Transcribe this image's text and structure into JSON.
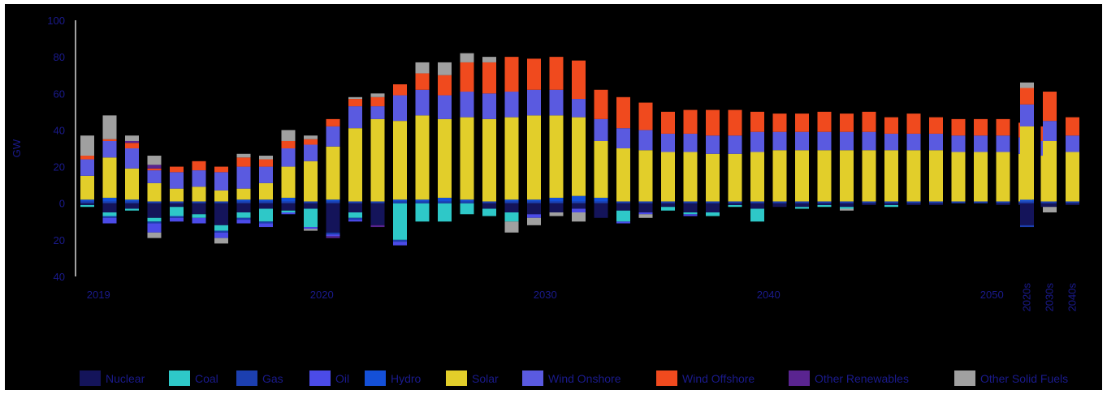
{
  "chart_data": {
    "type": "bar",
    "stacked": true,
    "ylabel": "GW",
    "ylim": [
      -40,
      100
    ],
    "yticks": [
      -40,
      -20,
      0,
      20,
      40,
      60,
      80,
      100
    ],
    "x_tick_labels": [
      {
        "after_index": 0,
        "label": "2019"
      },
      {
        "after_index": 10,
        "label": "2020"
      },
      {
        "after_index": 20,
        "label": "2030"
      },
      {
        "after_index": 30,
        "label": "2040"
      },
      {
        "after_index": 40,
        "label": "2050"
      }
    ],
    "summary_labels": [
      "2020s",
      "2030s",
      "2040s"
    ],
    "categories": [
      "1",
      "2",
      "3",
      "4",
      "5",
      "6",
      "7",
      "8",
      "9",
      "10",
      "11",
      "12",
      "13",
      "14",
      "15",
      "16",
      "17",
      "18",
      "19",
      "20",
      "21",
      "22",
      "23",
      "24",
      "25",
      "26",
      "27",
      "28",
      "29",
      "30",
      "31",
      "32",
      "33",
      "34",
      "35",
      "36",
      "37",
      "38",
      "39",
      "40",
      "41",
      "42",
      "43",
      "44",
      "2020s",
      "2030s",
      "2040s"
    ],
    "colors": {
      "Nuclear": "#14145a",
      "Coal": "#2ec8c8",
      "Gas": "#1c3fb0",
      "Oil": "#4b4be8",
      "Hydro": "#1450d8",
      "Solar": "#e2ce2a",
      "Wind Onshore": "#5a5ae0",
      "Wind Offshore": "#f04a1e",
      "Other Renewables": "#5a2490",
      "Other Solid Fuels": "#a0a0a0"
    },
    "series": [
      {
        "name": "Nuclear",
        "pos": [
          0,
          0,
          0,
          0,
          0,
          0,
          0,
          0,
          0,
          0,
          0,
          0,
          0,
          0,
          0,
          0,
          0,
          0,
          0,
          0,
          0,
          0,
          0,
          0,
          0,
          0,
          0,
          0,
          0,
          0,
          0,
          0,
          0,
          0,
          0,
          0,
          0,
          0,
          0,
          0,
          0,
          0,
          0,
          0,
          0,
          0,
          0
        ],
        "neg": [
          -1,
          -5,
          -3,
          -8,
          -2,
          -6,
          -12,
          -5,
          -3,
          -4,
          -3,
          -16,
          -5,
          -12,
          0,
          0,
          0,
          0,
          -3,
          -5,
          -6,
          -5,
          -3,
          -8,
          -4,
          -5,
          -2,
          -5,
          -5,
          -1,
          -3,
          -2,
          -2,
          -1,
          -2,
          -1,
          -1,
          -1,
          -1,
          0,
          0,
          -1,
          -1,
          -2,
          -12,
          -2,
          -1
        ]
      },
      {
        "name": "Coal",
        "pos": [
          0,
          0,
          0,
          0,
          0,
          0,
          0,
          0,
          0,
          0,
          0,
          0,
          0,
          0,
          0,
          0,
          0,
          0,
          0,
          0,
          0,
          0,
          0,
          0,
          0,
          0,
          0,
          0,
          0,
          0,
          0,
          0,
          0,
          0,
          0,
          0,
          0,
          0,
          0,
          0,
          0,
          0,
          0,
          0,
          0,
          0,
          0
        ],
        "neg": [
          -1,
          -2,
          -1,
          -2,
          -5,
          -2,
          -3,
          -3,
          -7,
          -1,
          -10,
          0,
          -3,
          0,
          -20,
          -10,
          -10,
          -6,
          -4,
          -5,
          0,
          0,
          0,
          0,
          -6,
          0,
          -2,
          -1,
          -2,
          -1,
          -7,
          0,
          -1,
          -1,
          -1,
          0,
          -1,
          0,
          0,
          0,
          0,
          0,
          0,
          0,
          0,
          0,
          0
        ]
      },
      {
        "name": "Gas",
        "pos": [
          1,
          1,
          1,
          1,
          1,
          1,
          1,
          1,
          1,
          1,
          1,
          1,
          1,
          1,
          1,
          1,
          1,
          1,
          1,
          1,
          1,
          1,
          1,
          1,
          1,
          1,
          1,
          1,
          1,
          1,
          1,
          1,
          1,
          1,
          1,
          1,
          1,
          1,
          1,
          1,
          1,
          1,
          1,
          1,
          1,
          1,
          1
        ],
        "neg": [
          0,
          -1,
          0,
          -1,
          -1,
          0,
          -1,
          -1,
          -1,
          0,
          0,
          -1,
          -1,
          0,
          -1,
          0,
          0,
          0,
          0,
          0,
          0,
          0,
          0,
          0,
          0,
          0,
          0,
          0,
          0,
          0,
          0,
          0,
          0,
          0,
          0,
          0,
          0,
          0,
          0,
          0,
          0,
          0,
          0,
          0,
          -1,
          0,
          0
        ]
      },
      {
        "name": "Oil",
        "pos": [
          0,
          0,
          0,
          0,
          0,
          0,
          0,
          0,
          0,
          0,
          0,
          0,
          0,
          0,
          0,
          0,
          0,
          0,
          0,
          0,
          0,
          0,
          0,
          0,
          0,
          0,
          0,
          0,
          0,
          0,
          0,
          0,
          0,
          0,
          0,
          0,
          0,
          0,
          0,
          0,
          0,
          0,
          0,
          0,
          0,
          0,
          0
        ],
        "neg": [
          0,
          -3,
          0,
          -5,
          -2,
          -3,
          -3,
          -2,
          -2,
          -1,
          -1,
          -1,
          -1,
          0,
          -2,
          0,
          0,
          0,
          0,
          0,
          -2,
          0,
          -2,
          0,
          -1,
          -1,
          0,
          -1,
          0,
          0,
          0,
          0,
          0,
          0,
          0,
          0,
          0,
          0,
          0,
          0,
          0,
          0,
          0,
          0,
          0,
          0,
          0
        ]
      },
      {
        "name": "Hydro",
        "pos": [
          1,
          2,
          1,
          0,
          0,
          0,
          0,
          1,
          1,
          2,
          0,
          1,
          0,
          0,
          1,
          1,
          2,
          1,
          0,
          1,
          1,
          2,
          3,
          2,
          0,
          0,
          0,
          0,
          0,
          0,
          0,
          0,
          0,
          0,
          0,
          0,
          0,
          0,
          0,
          0,
          0,
          0,
          0,
          0,
          1,
          0,
          0
        ],
        "neg": [
          0,
          0,
          0,
          0,
          0,
          0,
          0,
          0,
          0,
          0,
          0,
          0,
          0,
          0,
          0,
          0,
          0,
          0,
          0,
          0,
          0,
          0,
          0,
          0,
          0,
          0,
          0,
          0,
          0,
          0,
          0,
          0,
          0,
          0,
          0,
          0,
          0,
          0,
          0,
          0,
          0,
          0,
          0,
          0,
          0,
          0,
          0
        ]
      },
      {
        "name": "Solar",
        "pos": [
          13,
          22,
          17,
          10,
          7,
          8,
          6,
          6,
          9,
          17,
          22,
          29,
          40,
          45,
          43,
          46,
          43,
          45,
          45,
          45,
          46,
          45,
          43,
          31,
          29,
          28,
          27,
          27,
          26,
          26,
          27,
          28,
          28,
          28,
          28,
          28,
          28,
          28,
          28,
          27,
          27,
          27,
          26,
          25,
          40,
          33,
          27
        ],
        "neg": [
          0,
          0,
          0,
          0,
          0,
          0,
          0,
          0,
          0,
          0,
          0,
          0,
          0,
          0,
          0,
          0,
          0,
          0,
          0,
          0,
          0,
          0,
          0,
          0,
          0,
          0,
          0,
          0,
          0,
          0,
          0,
          0,
          0,
          0,
          0,
          0,
          0,
          0,
          0,
          0,
          0,
          0,
          0,
          0,
          0,
          0,
          0
        ]
      },
      {
        "name": "Wind Onshore",
        "pos": [
          9,
          9,
          11,
          7,
          9,
          9,
          10,
          12,
          9,
          10,
          9,
          11,
          12,
          7,
          14,
          14,
          13,
          14,
          14,
          14,
          14,
          14,
          10,
          12,
          11,
          11,
          10,
          10,
          10,
          10,
          11,
          10,
          10,
          10,
          10,
          10,
          9,
          9,
          9,
          9,
          9,
          9,
          9,
          8,
          12,
          11,
          9
        ],
        "neg": [
          0,
          0,
          0,
          0,
          0,
          0,
          0,
          0,
          0,
          0,
          0,
          0,
          0,
          0,
          0,
          0,
          0,
          0,
          0,
          0,
          0,
          0,
          0,
          0,
          0,
          0,
          0,
          0,
          0,
          0,
          0,
          0,
          0,
          0,
          0,
          0,
          0,
          0,
          0,
          0,
          0,
          0,
          0,
          0,
          0,
          0,
          0
        ]
      },
      {
        "name": "Wind Offshore",
        "pos": [
          2,
          1,
          3,
          1,
          3,
          5,
          3,
          5,
          4,
          4,
          3,
          4,
          4,
          5,
          6,
          9,
          11,
          16,
          17,
          19,
          17,
          18,
          21,
          16,
          17,
          15,
          12,
          13,
          14,
          14,
          11,
          10,
          10,
          11,
          10,
          11,
          9,
          11,
          9,
          9,
          9,
          9,
          8,
          8,
          9,
          16,
          10
        ],
        "neg": [
          0,
          0,
          0,
          0,
          0,
          0,
          0,
          0,
          0,
          0,
          0,
          0,
          0,
          0,
          0,
          0,
          0,
          0,
          0,
          0,
          0,
          0,
          0,
          0,
          0,
          0,
          0,
          0,
          0,
          0,
          0,
          0,
          0,
          0,
          0,
          0,
          0,
          0,
          0,
          0,
          0,
          0,
          0,
          0,
          0,
          0,
          0
        ]
      },
      {
        "name": "Other Renewables",
        "pos": [
          0,
          0,
          1,
          2,
          0,
          0,
          0,
          0,
          0,
          0,
          0,
          0,
          0,
          0,
          0,
          0,
          0,
          0,
          0,
          0,
          0,
          0,
          0,
          0,
          0,
          0,
          0,
          0,
          0,
          0,
          0,
          0,
          0,
          0,
          0,
          0,
          0,
          0,
          0,
          0,
          0,
          0,
          0,
          0,
          0,
          0,
          0
        ],
        "neg": [
          0,
          0,
          0,
          0,
          0,
          0,
          0,
          0,
          0,
          0,
          0,
          -1,
          0,
          -1,
          0,
          0,
          0,
          0,
          0,
          0,
          0,
          0,
          0,
          0,
          0,
          0,
          0,
          0,
          0,
          0,
          0,
          0,
          0,
          0,
          0,
          0,
          0,
          0,
          0,
          0,
          0,
          0,
          0,
          0,
          0,
          0,
          0
        ]
      },
      {
        "name": "Other Solid Fuels",
        "pos": [
          11,
          13,
          3,
          5,
          0,
          0,
          0,
          2,
          2,
          6,
          2,
          0,
          1,
          2,
          0,
          6,
          7,
          5,
          3,
          0,
          0,
          0,
          0,
          0,
          0,
          0,
          0,
          0,
          0,
          0,
          0,
          0,
          0,
          0,
          0,
          0,
          0,
          0,
          0,
          0,
          0,
          0,
          0,
          0,
          3,
          0,
          0
        ],
        "neg": [
          0,
          0,
          0,
          -3,
          0,
          0,
          -3,
          0,
          0,
          0,
          -1,
          0,
          0,
          0,
          0,
          0,
          0,
          0,
          0,
          -6,
          -4,
          -2,
          -5,
          0,
          0,
          -2,
          0,
          0,
          0,
          0,
          0,
          0,
          0,
          0,
          -1,
          0,
          0,
          0,
          0,
          0,
          0,
          0,
          0,
          0,
          0,
          -3,
          0
        ]
      }
    ]
  }
}
